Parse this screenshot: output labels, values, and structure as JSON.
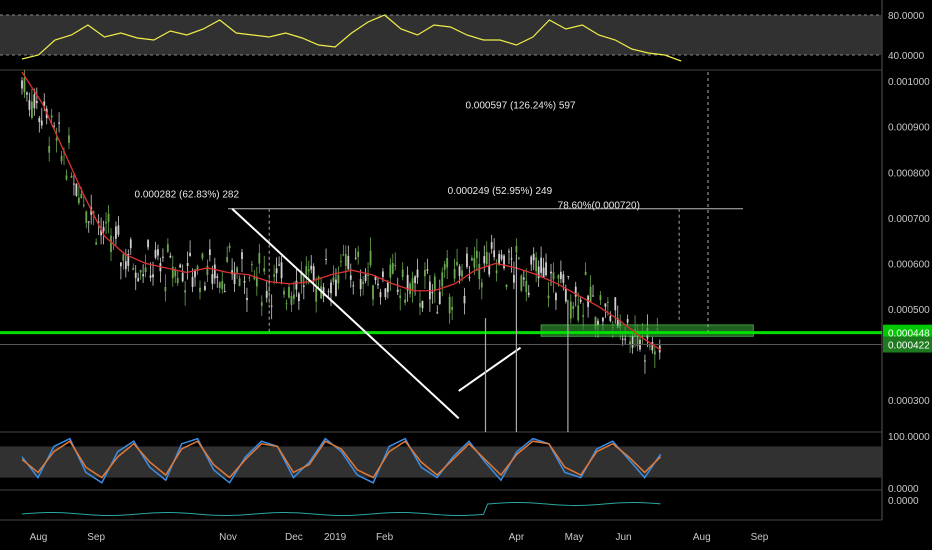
{
  "chart_data": [
    {
      "name": "rsi-panel",
      "type": "line",
      "yaxis_ticks": [
        "80.0000",
        "40.0000"
      ],
      "band": [
        40,
        80
      ],
      "ylim": [
        25,
        95
      ],
      "line_color": "#f0ee4a",
      "series": [
        {
          "x_day": [
            0,
            8,
            16,
            24,
            32,
            40,
            48,
            56,
            64,
            72,
            80,
            88,
            96,
            104,
            112,
            120,
            128,
            136,
            144,
            152,
            160,
            168,
            176,
            184,
            192,
            200,
            208,
            216,
            224,
            232,
            240,
            248,
            256,
            264,
            272,
            280,
            288,
            296,
            304,
            312,
            320
          ],
          "values": [
            36,
            40,
            55,
            60,
            70,
            58,
            62,
            57,
            55,
            64,
            60,
            66,
            75,
            62,
            60,
            58,
            62,
            57,
            50,
            48,
            62,
            73,
            80,
            66,
            60,
            70,
            68,
            60,
            55,
            55,
            50,
            58,
            75,
            66,
            70,
            60,
            55,
            46,
            42,
            40,
            34
          ]
        }
      ]
    },
    {
      "name": "price-panel",
      "type": "candlestick",
      "price_ticks": [
        "0.001000",
        "0.000900",
        "0.000800",
        "0.000700",
        "0.000600",
        "0.000500",
        "0.000300"
      ],
      "ylim": [
        0.00023,
        0.00102
      ],
      "support_label": "0.000448",
      "last_label": "0.000422",
      "support_price": 0.000448,
      "last_price": 0.000422,
      "ma_color": "#e03030",
      "support_color": "#00e000",
      "ma": {
        "x_day": [
          0,
          10,
          20,
          30,
          40,
          50,
          60,
          70,
          80,
          90,
          100,
          110,
          120,
          130,
          140,
          150,
          160,
          170,
          180,
          190,
          200,
          210,
          220,
          230,
          240,
          250,
          260,
          270,
          280,
          290,
          300,
          310
        ],
        "values": [
          0.00102,
          0.00095,
          0.00085,
          0.00075,
          0.00066,
          0.00062,
          0.0006,
          0.00059,
          0.00058,
          0.00059,
          0.00058,
          0.000575,
          0.00056,
          0.000555,
          0.00056,
          0.000575,
          0.000585,
          0.000575,
          0.000555,
          0.00054,
          0.00054,
          0.000555,
          0.000585,
          0.0006,
          0.00059,
          0.000575,
          0.000555,
          0.00053,
          0.000505,
          0.000475,
          0.00044,
          0.00041
        ]
      },
      "trendlines": [
        {
          "name": "downtrend",
          "from": [
            102,
            0.00072
          ],
          "to": [
            212,
            0.00026
          ]
        },
        {
          "name": "uptrend",
          "from": [
            212,
            0.00032
          ],
          "to": [
            242,
            0.000415
          ]
        }
      ],
      "annotations": [
        {
          "text": "0.000282 (62.83%) 282",
          "day": 80,
          "price": 0.000745
        },
        {
          "text": "0.000249 (52.95%) 249",
          "day": 232,
          "price": 0.000752
        },
        {
          "text": "0.000597 (126.24%) 597",
          "day": 242,
          "price": 0.00094
        },
        {
          "text": "78.60%(0.000720)",
          "day": 280,
          "price": 0.00072
        }
      ],
      "fib_level": 0.00072,
      "support_zone": [
        0.00044,
        0.000465
      ]
    },
    {
      "name": "stoch-panel",
      "type": "line",
      "yaxis_ticks": [
        "100.0000",
        "0.0000"
      ],
      "band": [
        20,
        80
      ],
      "series": [
        {
          "color": "#3b8ee8",
          "values": [
            60,
            20,
            80,
            95,
            30,
            10,
            70,
            90,
            40,
            15,
            85,
            95,
            35,
            10,
            60,
            90,
            80,
            20,
            50,
            95,
            70,
            25,
            10,
            80,
            95,
            40,
            20,
            60,
            90,
            50,
            15,
            70,
            95,
            85,
            30,
            20,
            75,
            90,
            55,
            20,
            65
          ]
        },
        {
          "color": "#e07a3a",
          "values": [
            55,
            30,
            70,
            90,
            40,
            20,
            60,
            85,
            50,
            25,
            75,
            90,
            45,
            20,
            55,
            85,
            80,
            30,
            45,
            90,
            75,
            35,
            20,
            70,
            90,
            50,
            25,
            55,
            85,
            55,
            25,
            65,
            90,
            85,
            40,
            25,
            70,
            85,
            60,
            30,
            60
          ]
        }
      ]
    },
    {
      "name": "bottom-panel",
      "type": "line",
      "yaxis_ticks": [
        "0.0000"
      ],
      "series": [
        {
          "color": "#2aa6a0",
          "values": [
            0,
            0,
            0,
            0,
            0,
            0,
            0,
            0,
            0,
            0,
            0,
            0,
            0,
            0,
            0,
            0,
            0,
            0,
            0,
            0,
            0,
            0,
            0,
            0,
            0,
            0,
            0,
            0,
            0,
            0,
            0,
            0,
            0,
            0,
            0,
            0,
            0,
            0,
            0,
            0,
            0
          ]
        }
      ]
    }
  ],
  "x_axis": {
    "labels": [
      "Aug",
      "Sep",
      "Nov",
      "Dec",
      "2019",
      "Feb",
      "Apr",
      "May",
      "Jun",
      "Aug",
      "Sep"
    ],
    "day_positions": [
      8,
      36,
      100,
      132,
      152,
      176,
      240,
      268,
      292,
      330,
      358
    ]
  }
}
